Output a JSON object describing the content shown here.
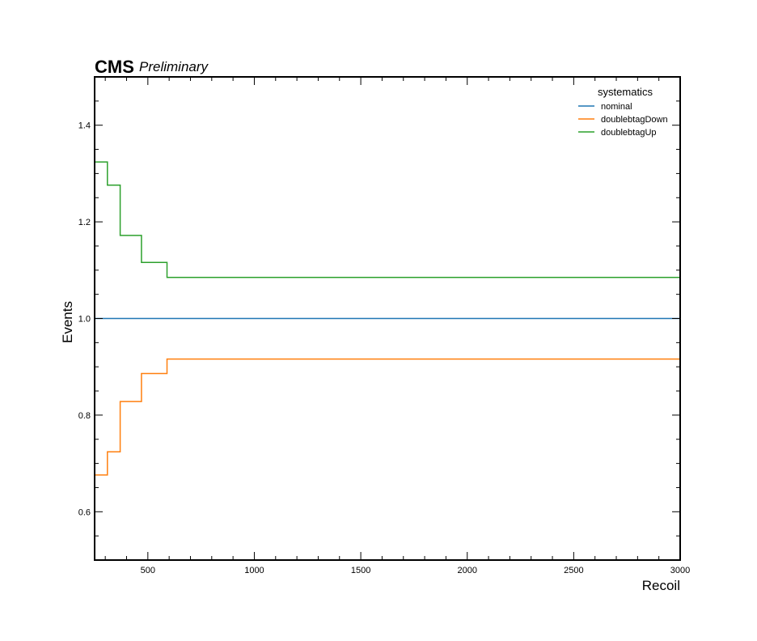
{
  "header": {
    "experiment": "CMS",
    "status": "Preliminary"
  },
  "chart_data": {
    "type": "line",
    "drawstyle": "steps",
    "xlabel": "Recoil",
    "ylabel": "Events",
    "xlim": [
      250,
      3000
    ],
    "ylim": [
      0.5,
      1.5
    ],
    "xticks": [
      500,
      1000,
      1500,
      2000,
      2500,
      3000
    ],
    "yticks": [
      0.6,
      0.8,
      1.0,
      1.2,
      1.4
    ],
    "bin_edges": [
      250,
      310,
      370,
      470,
      590,
      3000
    ],
    "legend": {
      "title": "systematics",
      "placement": "top-right"
    },
    "series": [
      {
        "name": "nominal",
        "color": "#1f77b4",
        "values": [
          1.0,
          1.0,
          1.0,
          1.0,
          1.0
        ]
      },
      {
        "name": "doublebtagDown",
        "color": "#ff7f0e",
        "values": [
          0.676,
          0.724,
          0.828,
          0.886,
          0.916
        ]
      },
      {
        "name": "doublebtagUp",
        "color": "#2ca02c",
        "values": [
          1.324,
          1.276,
          1.172,
          1.116,
          1.085
        ]
      }
    ]
  }
}
